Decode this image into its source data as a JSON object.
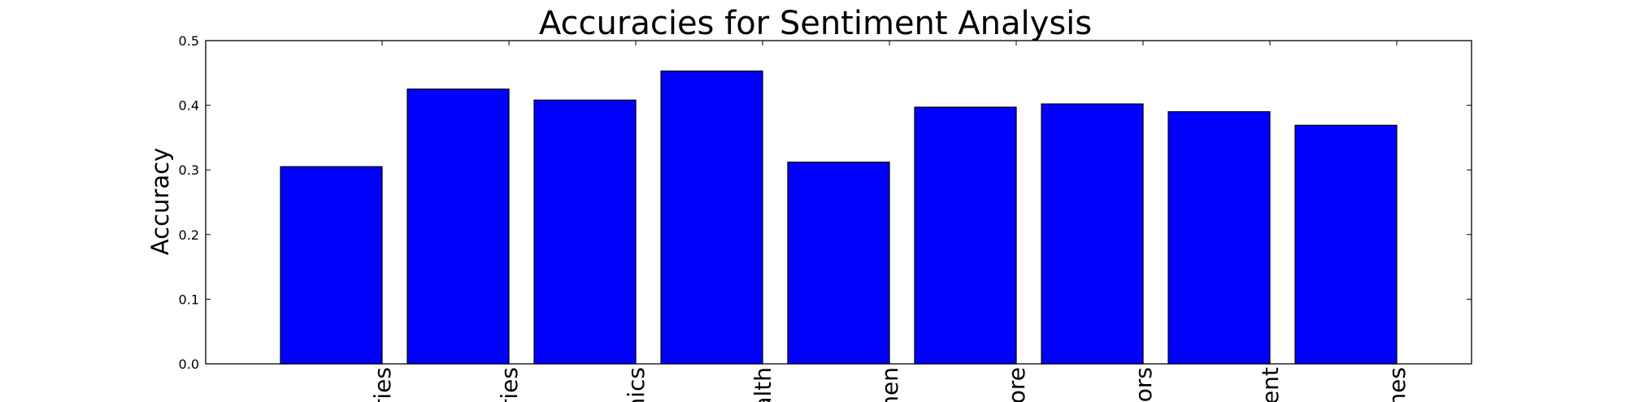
{
  "chart_data": {
    "type": "bar",
    "title": "Accuracies for Sentiment Analysis",
    "xlabel": "",
    "ylabel": "Accuracy",
    "ylim": [
      0,
      0.5
    ],
    "yticks": [
      "0.0",
      "0.1",
      "0.2",
      "0.3",
      "0.4",
      "0.5"
    ],
    "categories": [
      "ries",
      "ries",
      "nics",
      "alth",
      "men",
      "ore",
      "ors",
      "ent",
      "nes"
    ],
    "values": [
      0.305,
      0.425,
      0.408,
      0.453,
      0.312,
      0.397,
      0.402,
      0.39,
      0.369
    ],
    "bar_color": "#0000ff",
    "grid": false
  }
}
